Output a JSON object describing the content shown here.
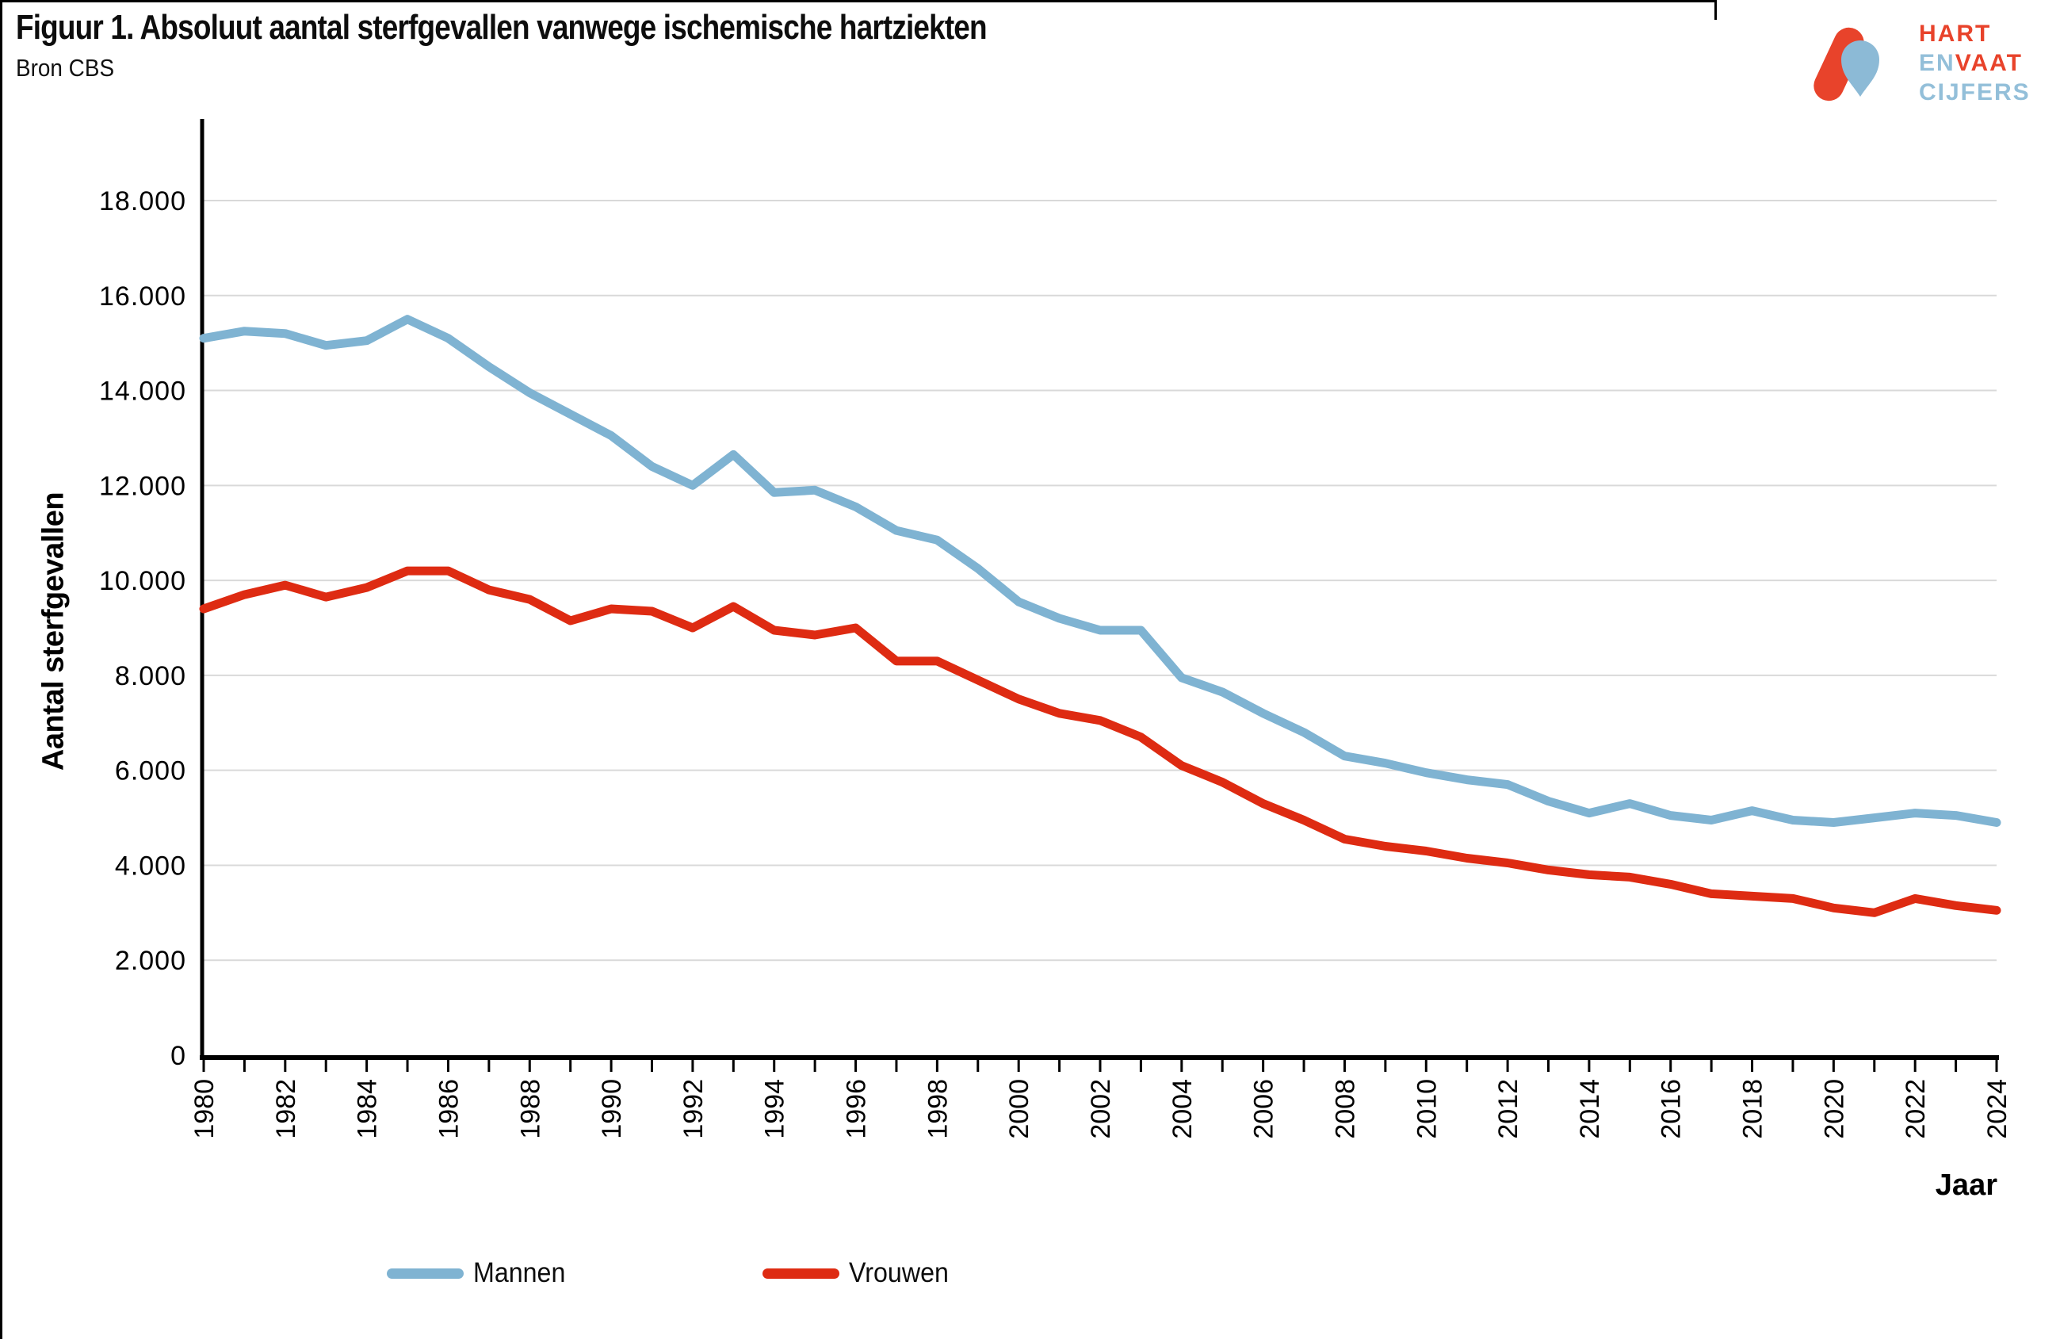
{
  "header": {
    "title": "Figuur 1. Absoluut aantal sterfgevallen vanwege ischemische hartziekten",
    "source": "Bron CBS"
  },
  "logo": {
    "line1": "HART",
    "line2a": "EN",
    "line2b": "VAAT",
    "line3": "CIJFERS",
    "red": "#E8432B",
    "blue": "#93BFD9"
  },
  "chart_data": {
    "type": "line",
    "title": "Figuur 1. Absoluut aantal sterfgevallen vanwege ischemische hartziekten",
    "xlabel": "Jaar",
    "ylabel": "Aantal sterfgevallen",
    "grid": "horizontal",
    "grid_color": "#D9D9D9",
    "legend_position": "bottom",
    "ylim": [
      0,
      18000
    ],
    "yticks": [
      0,
      2000,
      4000,
      6000,
      8000,
      10000,
      12000,
      14000,
      16000,
      18000
    ],
    "y_ticklabels": [
      "0",
      "2.000",
      "4.000",
      "6.000",
      "8.000",
      "10.000",
      "12.000",
      "14.000",
      "16.000",
      "18.000"
    ],
    "x": [
      1980,
      1981,
      1982,
      1983,
      1984,
      1985,
      1986,
      1987,
      1988,
      1989,
      1990,
      1991,
      1992,
      1993,
      1994,
      1995,
      1996,
      1997,
      1998,
      1999,
      2000,
      2001,
      2002,
      2003,
      2004,
      2005,
      2006,
      2007,
      2008,
      2009,
      2010,
      2011,
      2012,
      2013,
      2014,
      2015,
      2016,
      2017,
      2018,
      2019,
      2020,
      2021,
      2022,
      2023,
      2024
    ],
    "x_ticklabels": [
      "1980",
      "1982",
      "1984",
      "1986",
      "1988",
      "1990",
      "1992",
      "1994",
      "1996",
      "1998",
      "2000",
      "2002",
      "2004",
      "2006",
      "2008",
      "2010",
      "2012",
      "2014",
      "2016",
      "2018",
      "2020",
      "2022",
      "2024"
    ],
    "series": [
      {
        "name": "Mannen",
        "color": "#7FB3D2",
        "values": [
          15100,
          15250,
          15200,
          14950,
          15050,
          15500,
          15100,
          14500,
          13950,
          13500,
          13050,
          12400,
          12000,
          12650,
          11850,
          11900,
          11550,
          11050,
          10850,
          10250,
          9550,
          9200,
          8950,
          8950,
          7950,
          7650,
          7200,
          6800,
          6300,
          6150,
          5950,
          5800,
          5700,
          5350,
          5100,
          5300,
          5050,
          4950,
          5150,
          4950,
          4900,
          5000,
          5100,
          5050,
          4900
        ]
      },
      {
        "name": "Vrouwen",
        "color": "#DE2B12",
        "values": [
          9400,
          9700,
          9900,
          9650,
          9850,
          10200,
          10200,
          9800,
          9600,
          9150,
          9400,
          9350,
          9000,
          9450,
          8950,
          8850,
          9000,
          8300,
          8300,
          7900,
          7500,
          7200,
          7050,
          6700,
          6100,
          5750,
          5300,
          4950,
          4550,
          4400,
          4300,
          4150,
          4050,
          3900,
          3800,
          3750,
          3600,
          3400,
          3350,
          3300,
          3100,
          3000,
          3300,
          3150,
          3050
        ]
      }
    ]
  }
}
